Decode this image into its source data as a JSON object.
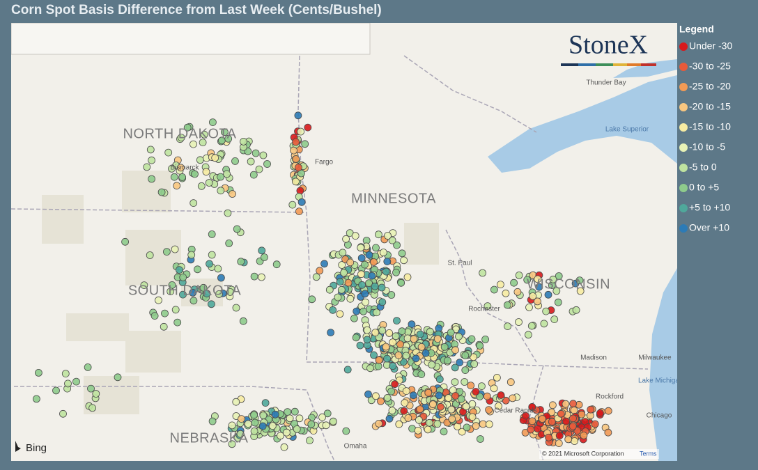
{
  "title": "Corn Spot Basis Difference from Last Week (Cents/Bushel)",
  "legend": {
    "title": "Legend",
    "items": [
      {
        "label": "Under -30",
        "color": "#d7191c"
      },
      {
        "label": "-30 to -25",
        "color": "#e85a3a"
      },
      {
        "label": "-25 to -20",
        "color": "#f29a55"
      },
      {
        "label": "-20 to -15",
        "color": "#f8c680"
      },
      {
        "label": "-15 to -10",
        "color": "#f6eba2"
      },
      {
        "label": "-10 to -5",
        "color": "#e8f2b6"
      },
      {
        "label": "-5 to 0",
        "color": "#bfe3a0"
      },
      {
        "label": "0 to +5",
        "color": "#8ecb8c"
      },
      {
        "label": "+5 to +10",
        "color": "#4fa89b"
      },
      {
        "label": "Over +10",
        "color": "#2c7bb6"
      }
    ]
  },
  "map": {
    "states": [
      "NORTH DAKOTA",
      "SOUTH DAKOTA",
      "MINNESOTA",
      "WISCONSIN",
      "NEBRASKA"
    ],
    "places": [
      "Bismarck",
      "Fargo",
      "Thunder Bay",
      "Lake Superior",
      "St. Paul",
      "Rochester",
      "Madison",
      "Milwaukee",
      "Lake Michigan",
      "Rockford",
      "Chicago",
      "Cedar Rapids",
      "Omaha"
    ],
    "logo": "StoneX",
    "provider": "Bing",
    "attribution": "© 2021 Microsoft Corporation",
    "terms": "Terms"
  }
}
